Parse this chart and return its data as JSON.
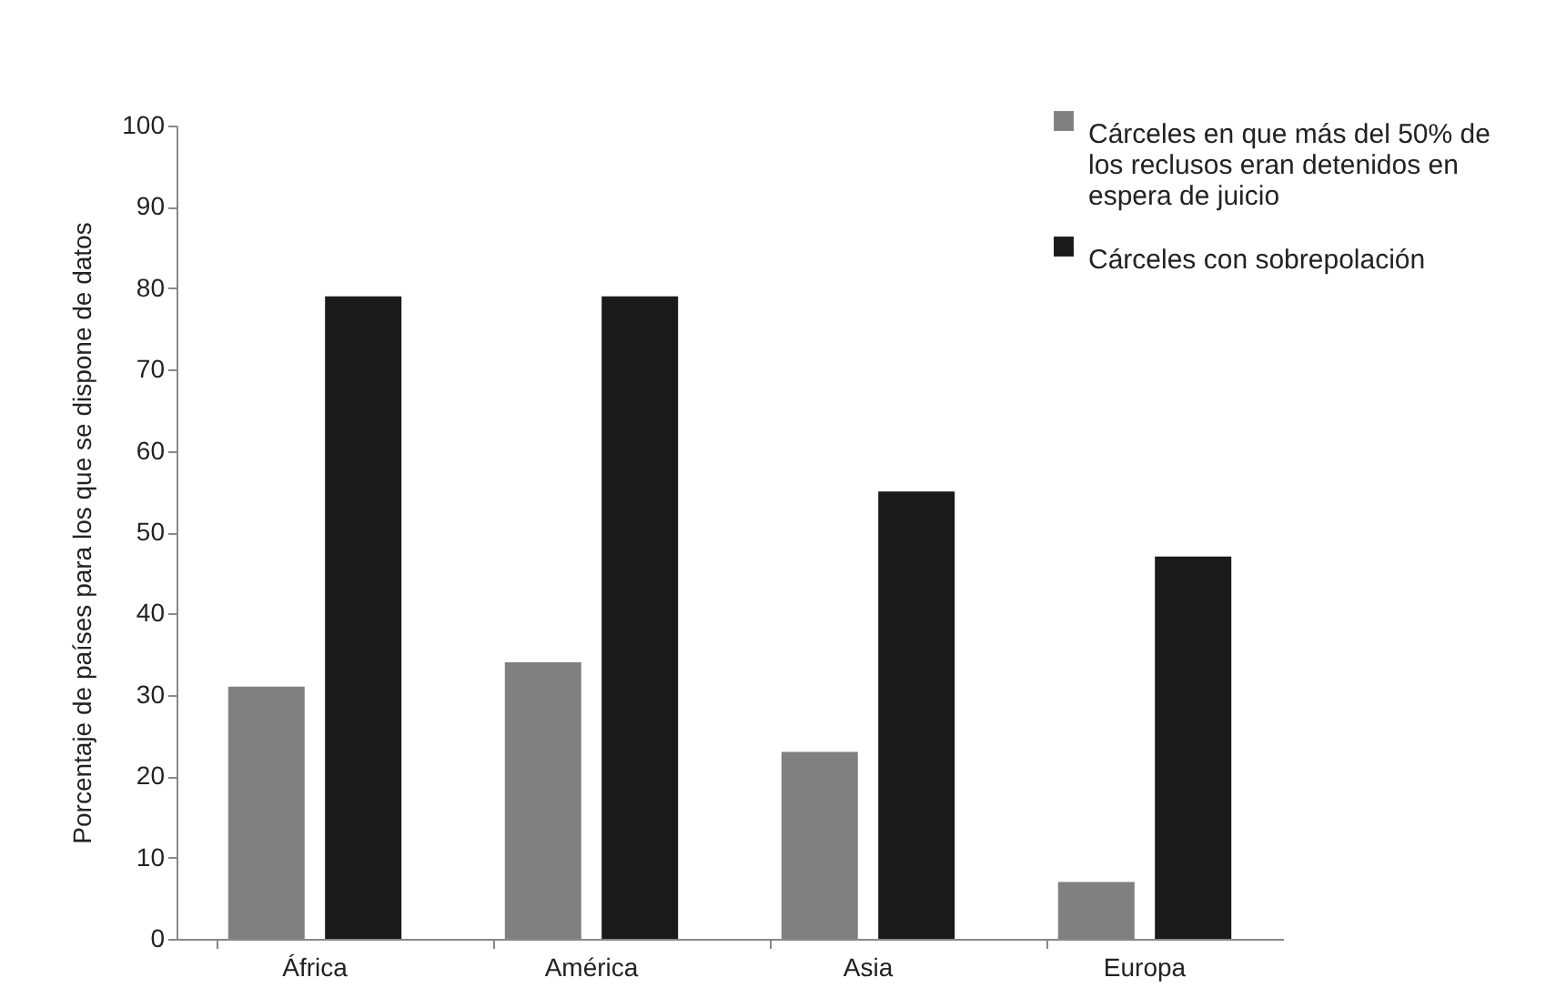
{
  "chart_data": {
    "type": "bar",
    "ylabel": "Porcentaje de países para los que se dispone de datos",
    "categories": [
      "África",
      "América",
      "Asia",
      "Europa"
    ],
    "series": [
      {
        "name": "Cárceles en que más del 50% de los reclusos eran detenidos en espera de juicio",
        "color": "#808080",
        "values": [
          31,
          34,
          23,
          7
        ]
      },
      {
        "name": "Cárceles con sobrepolación",
        "color": "#1a1a1a",
        "values": [
          79,
          79,
          55,
          47
        ]
      }
    ],
    "ylim": [
      0,
      100
    ],
    "yticks": [
      0,
      10,
      20,
      30,
      40,
      50,
      60,
      70,
      80,
      90,
      100
    ],
    "grid": false,
    "legend": "top right"
  }
}
